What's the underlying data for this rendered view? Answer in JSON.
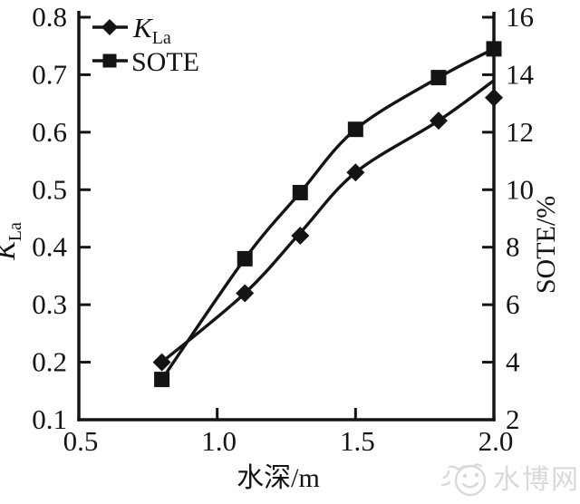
{
  "page": {
    "background": "#ffffff",
    "ink_color": "#141414"
  },
  "watermark": {
    "text": "水博网",
    "logo": "smiley-fish-logo",
    "color": "#d9d9d9"
  },
  "chart_data": {
    "type": "line",
    "title": "",
    "xlabel": "水深/m",
    "grid": false,
    "legend_position": "top-left",
    "x_axis": {
      "min": 0.5,
      "max": 2.0,
      "ticks": [
        "0.5",
        "1.0",
        "1.5",
        "2.0"
      ]
    },
    "y_axis_left": {
      "label_main": "K",
      "label_sub": "La",
      "min": 0.1,
      "max": 0.8,
      "ticks": [
        "0.1",
        "0.2",
        "0.3",
        "0.4",
        "0.5",
        "0.6",
        "0.7",
        "0.8"
      ]
    },
    "y_axis_right": {
      "label": "SOTE/%",
      "min": 2,
      "max": 16,
      "ticks": [
        "2",
        "4",
        "6",
        "8",
        "10",
        "12",
        "14",
        "16"
      ]
    },
    "x": [
      0.8,
      1.1,
      1.3,
      1.5,
      1.8,
      2.0
    ],
    "series": [
      {
        "name": "KLa",
        "legend_main": "K",
        "legend_sub": "La",
        "axis": "left",
        "marker": "diamond",
        "color": "#141414",
        "values": [
          0.2,
          0.32,
          0.42,
          0.53,
          0.62,
          0.66
        ],
        "line_points": {
          "x": [
            0.8,
            1.1,
            1.3,
            1.5,
            1.8,
            2.0
          ],
          "y": [
            0.2,
            0.32,
            0.425,
            0.53,
            0.62,
            0.69
          ]
        }
      },
      {
        "name": "SOTE",
        "legend": "SOTE",
        "axis": "right",
        "marker": "square",
        "color": "#141414",
        "values": [
          3.4,
          7.6,
          9.9,
          12.1,
          13.9,
          14.9
        ]
      }
    ]
  }
}
